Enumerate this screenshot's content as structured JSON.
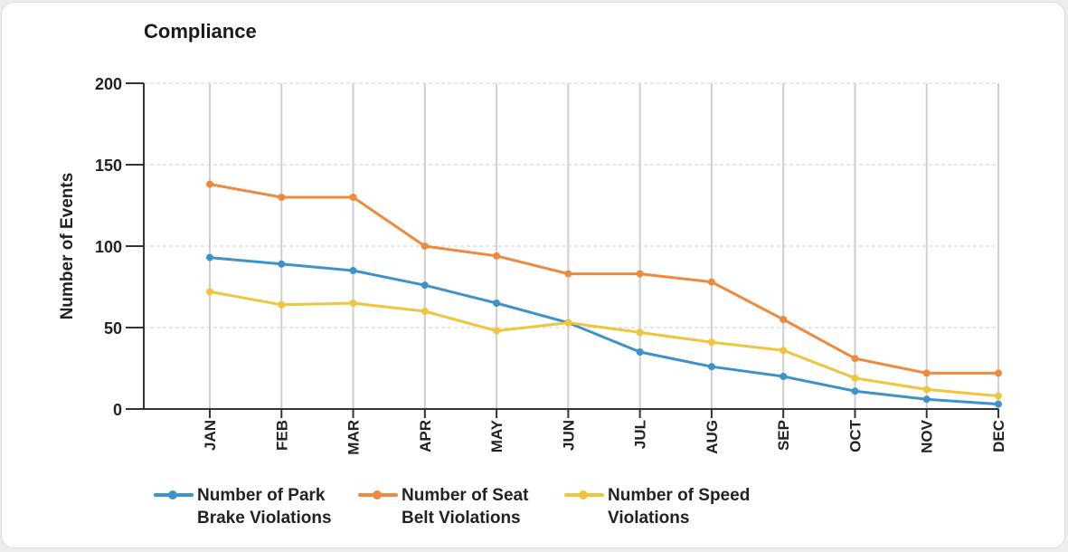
{
  "colors": {
    "park": "#3d93c9",
    "seat": "#ee8a3d",
    "speed": "#efc53e",
    "axis": "#333333",
    "grid": "#cfcfcf"
  },
  "chart_data": {
    "type": "line",
    "title": "Compliance",
    "ylabel": "Number of Events",
    "xlabel": "",
    "categories": [
      "JAN",
      "FEB",
      "MAR",
      "APR",
      "MAY",
      "JUN",
      "JUL",
      "AUG",
      "SEP",
      "OCT",
      "NOV",
      "DEC"
    ],
    "ylim": [
      0,
      200
    ],
    "yticks": [
      "0",
      "50",
      "100",
      "150",
      "200"
    ],
    "grid": "vertical lines at categories, horizontal dashed lines at y ticks",
    "legend_position": "bottom",
    "series": [
      {
        "name": "Number of Park Brake Violations",
        "key": "park",
        "values": [
          93,
          89,
          85,
          76,
          65,
          53,
          35,
          26,
          20,
          11,
          6,
          3
        ]
      },
      {
        "name": "Number of Seat Belt Violations",
        "key": "seat",
        "values": [
          138,
          130,
          130,
          100,
          94,
          83,
          83,
          78,
          55,
          31,
          22,
          22
        ]
      },
      {
        "name": "Number of Speed Violations",
        "key": "speed",
        "values": [
          72,
          64,
          65,
          60,
          48,
          53,
          47,
          41,
          36,
          19,
          12,
          8
        ]
      }
    ]
  },
  "legend": [
    {
      "key": "park",
      "line1": "Number of Park",
      "line2": "Brake Violations"
    },
    {
      "key": "seat",
      "line1": "Number of Seat",
      "line2": "Belt Violations"
    },
    {
      "key": "speed",
      "line1": "Number of Speed",
      "line2": "Violations"
    }
  ]
}
